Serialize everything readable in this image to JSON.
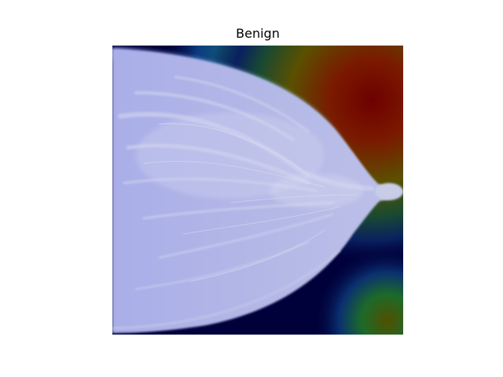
{
  "figure": {
    "title": "Benign"
  },
  "image": {
    "subject": "mammogram-with-heatmap-overlay",
    "colors": {
      "background_low": "#00003a",
      "heat_high": "#8a0a00",
      "heat_mid": "#6a6a00",
      "tissue": "#aab0e6",
      "skin_edge": "#7fe0c8"
    }
  }
}
